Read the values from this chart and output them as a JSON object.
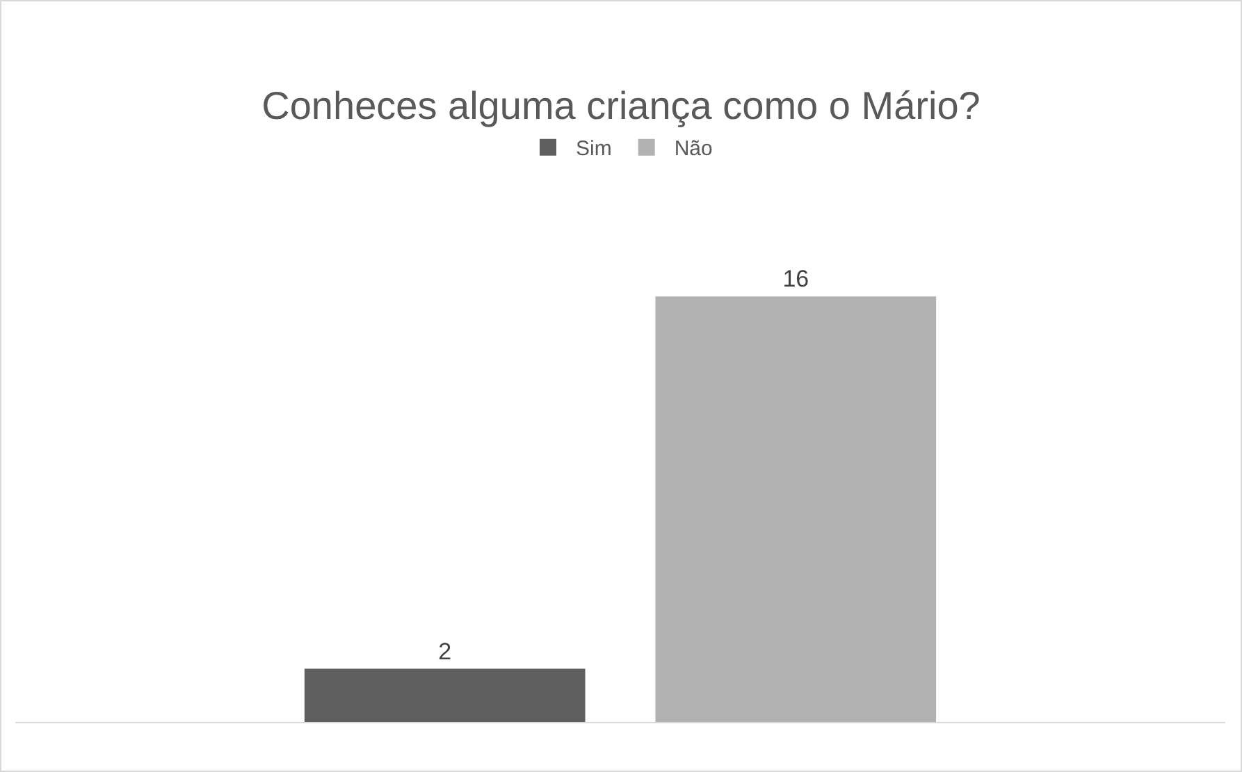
{
  "chart_data": {
    "type": "bar",
    "title": "Conheces alguma criança como o Mário?",
    "categories": [
      null
    ],
    "series": [
      {
        "name": "Sim",
        "color": "#5f5f5f",
        "values": [
          2
        ]
      },
      {
        "name": "Não",
        "color": "#b2b2b2",
        "values": [
          16
        ]
      }
    ],
    "data_labels": true,
    "legend": "top",
    "grid": false
  }
}
